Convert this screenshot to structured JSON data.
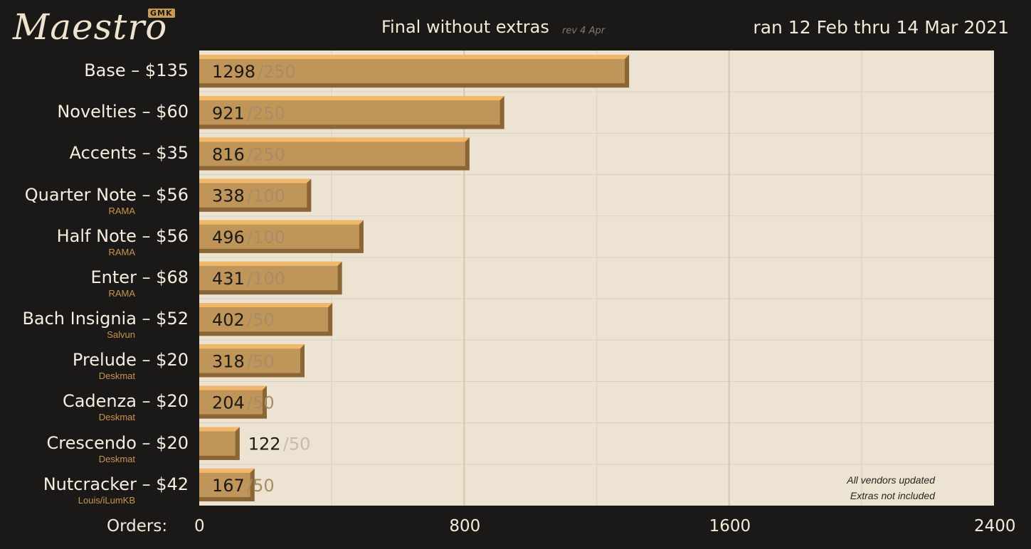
{
  "header": {
    "logo_text": "Maestro",
    "logo_badge": "GMK",
    "title": "Final without extras",
    "revision": "rev 4 Apr",
    "date_range": "ran 12 Feb thru 14 Mar 2021"
  },
  "notes": [
    "All vendors updated",
    "Extras not included"
  ],
  "colors": {
    "background": "#1a1918",
    "plot_background": "#ede3d3",
    "bar_face": "#c0955a",
    "bar_top": "#f0b868",
    "bar_side": "#8a6636",
    "sub_label": "#c8944e"
  },
  "chart_data": {
    "type": "bar",
    "orientation": "horizontal",
    "xlabel": "Orders:",
    "xlim": [
      0,
      2400
    ],
    "xticks": [
      0,
      800,
      1600,
      2400
    ],
    "grid": true,
    "categories": [
      "Base – $135",
      "Novelties – $60",
      "Accents – $35",
      "Quarter Note – $56",
      "Half Note – $56",
      "Enter – $68",
      "Bach Insignia – $52",
      "Prelude – $20",
      "Cadenza – $20",
      "Crescendo – $20",
      "Nutcracker – $42"
    ],
    "sublabels": [
      "",
      "",
      "",
      "RAMA",
      "RAMA",
      "RAMA",
      "Salvun",
      "Deskmat",
      "Deskmat",
      "Deskmat",
      "Louis/iLumKB"
    ],
    "values": [
      1298,
      921,
      816,
      338,
      496,
      431,
      402,
      318,
      204,
      122,
      167
    ],
    "minimums": [
      "/250",
      "/250",
      "/250",
      "/100",
      "/100",
      "/100",
      "/50",
      "/50",
      "/50",
      "/50",
      "/50"
    ]
  }
}
